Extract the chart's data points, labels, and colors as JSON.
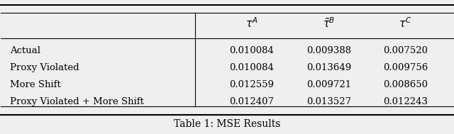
{
  "col_headers_display": [
    "$\\tau^A$",
    "$\\tilde{\\tau}^B$",
    "$\\tau^C$"
  ],
  "row_labels": [
    "Actual",
    "Proxy Violated",
    "More Shift",
    "Proxy Violated + More Shift"
  ],
  "values": [
    [
      "0.010084",
      "0.009388",
      "0.007520"
    ],
    [
      "0.010084",
      "0.013649",
      "0.009756"
    ],
    [
      "0.012559",
      "0.009721",
      "0.008650"
    ],
    [
      "0.012407",
      "0.013527",
      "0.012243"
    ]
  ],
  "caption": "Table 1: MSE Results",
  "background_color": "#efefef"
}
